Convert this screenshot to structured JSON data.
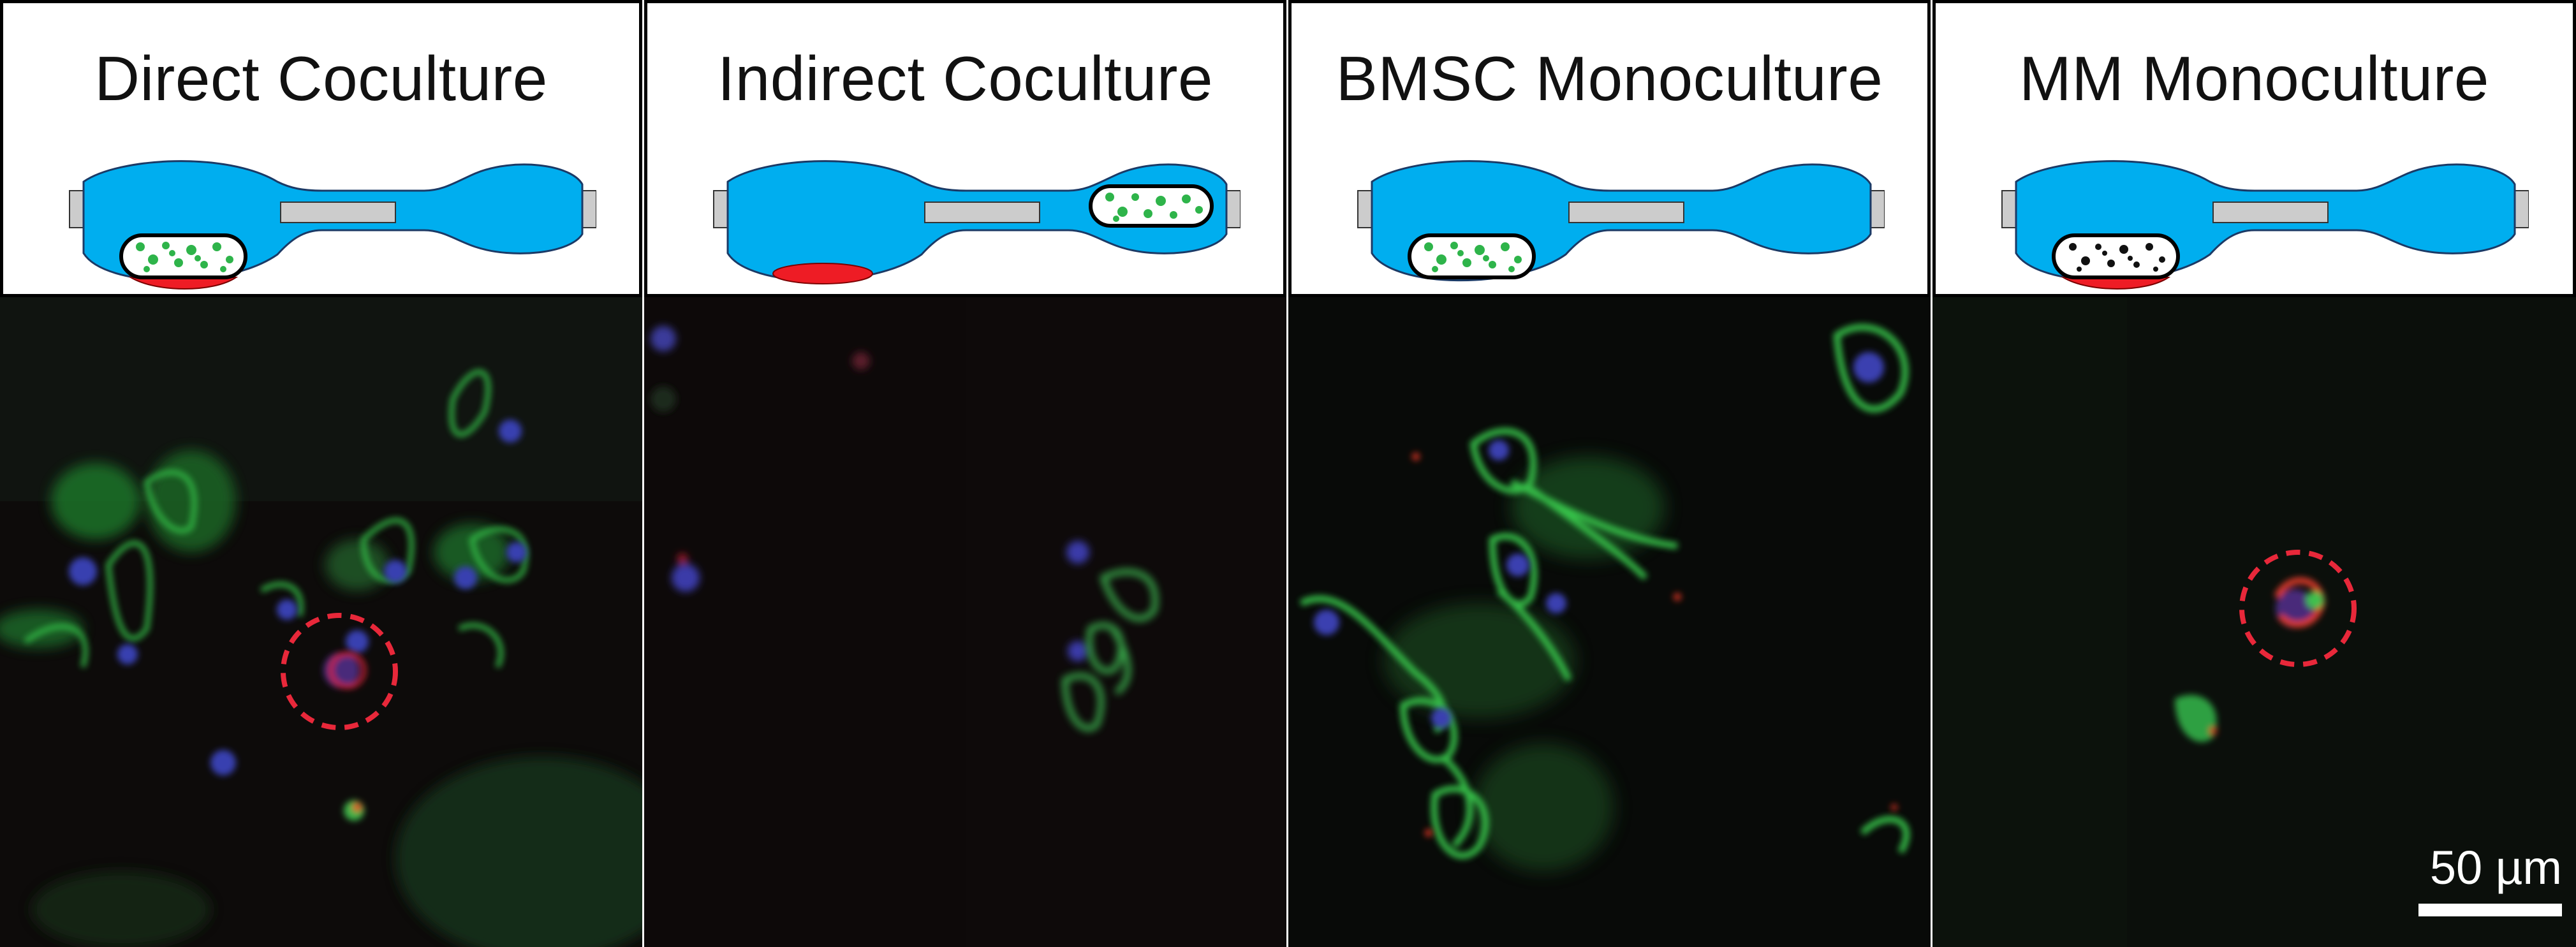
{
  "panels": [
    {
      "title": "Direct Coculture",
      "mm_cells": true,
      "bmsc_scaffold": true,
      "scaffold_position": "left",
      "mm_position": "left"
    },
    {
      "title": "Indirect Coculture",
      "mm_cells": true,
      "bmsc_scaffold": true,
      "scaffold_position": "right",
      "mm_position": "left"
    },
    {
      "title": "BMSC Monoculture",
      "mm_cells": false,
      "bmsc_scaffold": true,
      "scaffold_position": "left",
      "mm_position": "none"
    },
    {
      "title": "MM Monoculture",
      "mm_cells": true,
      "bmsc_scaffold": false,
      "scaffold_position": "left",
      "mm_position": "left"
    }
  ],
  "scale_bar": {
    "label": "50 µm"
  },
  "colors": {
    "chamber": "#00aeef",
    "mm_cells": "#ee1c25",
    "bmsc": "#2eb44a",
    "port": "#cccccc"
  }
}
